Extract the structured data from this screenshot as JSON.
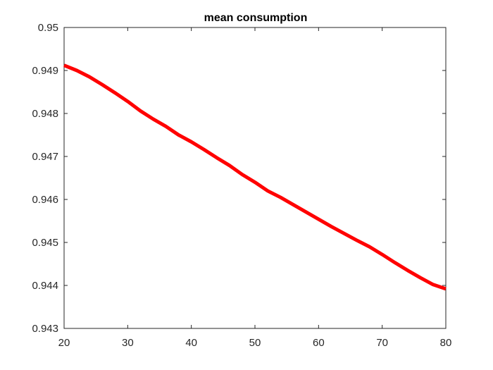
{
  "chart_data": {
    "type": "line",
    "title": "mean consumption",
    "xlabel": "",
    "ylabel": "",
    "xlim": [
      20,
      80
    ],
    "ylim": [
      0.943,
      0.95
    ],
    "x_ticks": [
      20,
      30,
      40,
      50,
      60,
      70,
      80
    ],
    "x_tick_labels": [
      "20",
      "30",
      "40",
      "50",
      "60",
      "70",
      "80"
    ],
    "y_ticks": [
      0.943,
      0.944,
      0.945,
      0.946,
      0.947,
      0.948,
      0.949,
      0.95
    ],
    "y_tick_labels": [
      "0.943",
      "0.944",
      "0.945",
      "0.946",
      "0.947",
      "0.948",
      "0.949",
      "0.95"
    ],
    "grid": false,
    "series": [
      {
        "color": "#ff0000",
        "x": [
          20,
          22,
          24,
          26,
          28,
          30,
          32,
          34,
          36,
          38,
          40,
          42,
          44,
          46,
          48,
          50,
          52,
          54,
          56,
          58,
          60,
          62,
          64,
          66,
          68,
          70,
          72,
          74,
          76,
          78,
          80
        ],
        "y": [
          0.94912,
          0.949,
          0.94885,
          0.94867,
          0.94848,
          0.94828,
          0.94806,
          0.94787,
          0.9477,
          0.9475,
          0.94734,
          0.94716,
          0.94697,
          0.94679,
          0.94658,
          0.9464,
          0.9462,
          0.94605,
          0.94588,
          0.94571,
          0.94554,
          0.94537,
          0.94521,
          0.94505,
          0.9449,
          0.94472,
          0.94453,
          0.94435,
          0.94418,
          0.94402,
          0.94392
        ]
      }
    ]
  }
}
